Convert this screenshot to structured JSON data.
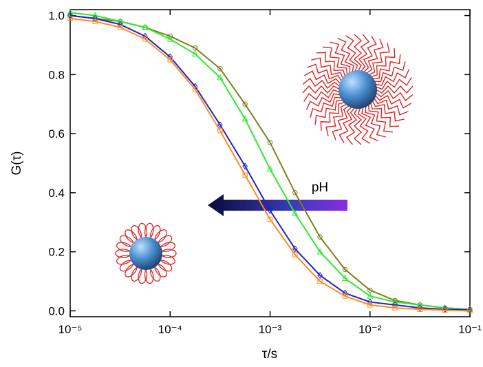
{
  "chart_data": {
    "type": "line",
    "x_label": "τ/s",
    "y_label": "G(τ)",
    "annotation": "pH",
    "log_x": true,
    "xlim": [
      1e-05,
      0.1
    ],
    "ylim": [
      -0.02,
      1.02
    ],
    "xticks": [
      {
        "value": 1e-05,
        "label": "10⁻⁵"
      },
      {
        "value": 0.0001,
        "label": "10⁻⁴"
      },
      {
        "value": 0.001,
        "label": "10⁻³"
      },
      {
        "value": 0.01,
        "label": "10⁻²"
      },
      {
        "value": 0.1,
        "label": "10⁻¹"
      }
    ],
    "yticks": [
      {
        "value": 0,
        "label": "0.0"
      },
      0.2,
      0.4,
      0.6,
      0.8,
      {
        "value": 1,
        "label": "1.0"
      }
    ],
    "x": [
      1e-05,
      1.778e-05,
      3.162e-05,
      5.623e-05,
      0.0001,
      0.0001778,
      0.0003162,
      0.0005623,
      0.001,
      0.001778,
      0.003162,
      0.005623,
      0.01,
      0.01778,
      0.03162,
      0.05623,
      0.1
    ],
    "series": [
      {
        "color": "#7f7f1c",
        "marker": "circle",
        "values": [
          1.0,
          0.99,
          0.98,
          0.96,
          0.93,
          0.89,
          0.82,
          0.7,
          0.57,
          0.4,
          0.25,
          0.14,
          0.07,
          0.035,
          0.02,
          0.01,
          0.005
        ]
      },
      {
        "color": "#2ee82e",
        "marker": "triangle",
        "values": [
          1.01,
          1.0,
          0.98,
          0.96,
          0.92,
          0.87,
          0.79,
          0.65,
          0.48,
          0.33,
          0.2,
          0.11,
          0.05,
          0.03,
          0.02,
          0.01,
          0.005
        ]
      },
      {
        "color": "#2020c8",
        "marker": "diamond",
        "values": [
          1.0,
          0.99,
          0.97,
          0.93,
          0.86,
          0.76,
          0.63,
          0.49,
          0.34,
          0.21,
          0.12,
          0.06,
          0.03,
          0.02,
          0.01,
          0.005,
          0.003
        ]
      },
      {
        "color": "#ff8c1a",
        "marker": "square",
        "values": [
          0.99,
          0.98,
          0.96,
          0.92,
          0.85,
          0.75,
          0.61,
          0.46,
          0.31,
          0.19,
          0.1,
          0.05,
          0.02,
          0.01,
          0.005,
          0.002,
          0
        ]
      }
    ]
  }
}
